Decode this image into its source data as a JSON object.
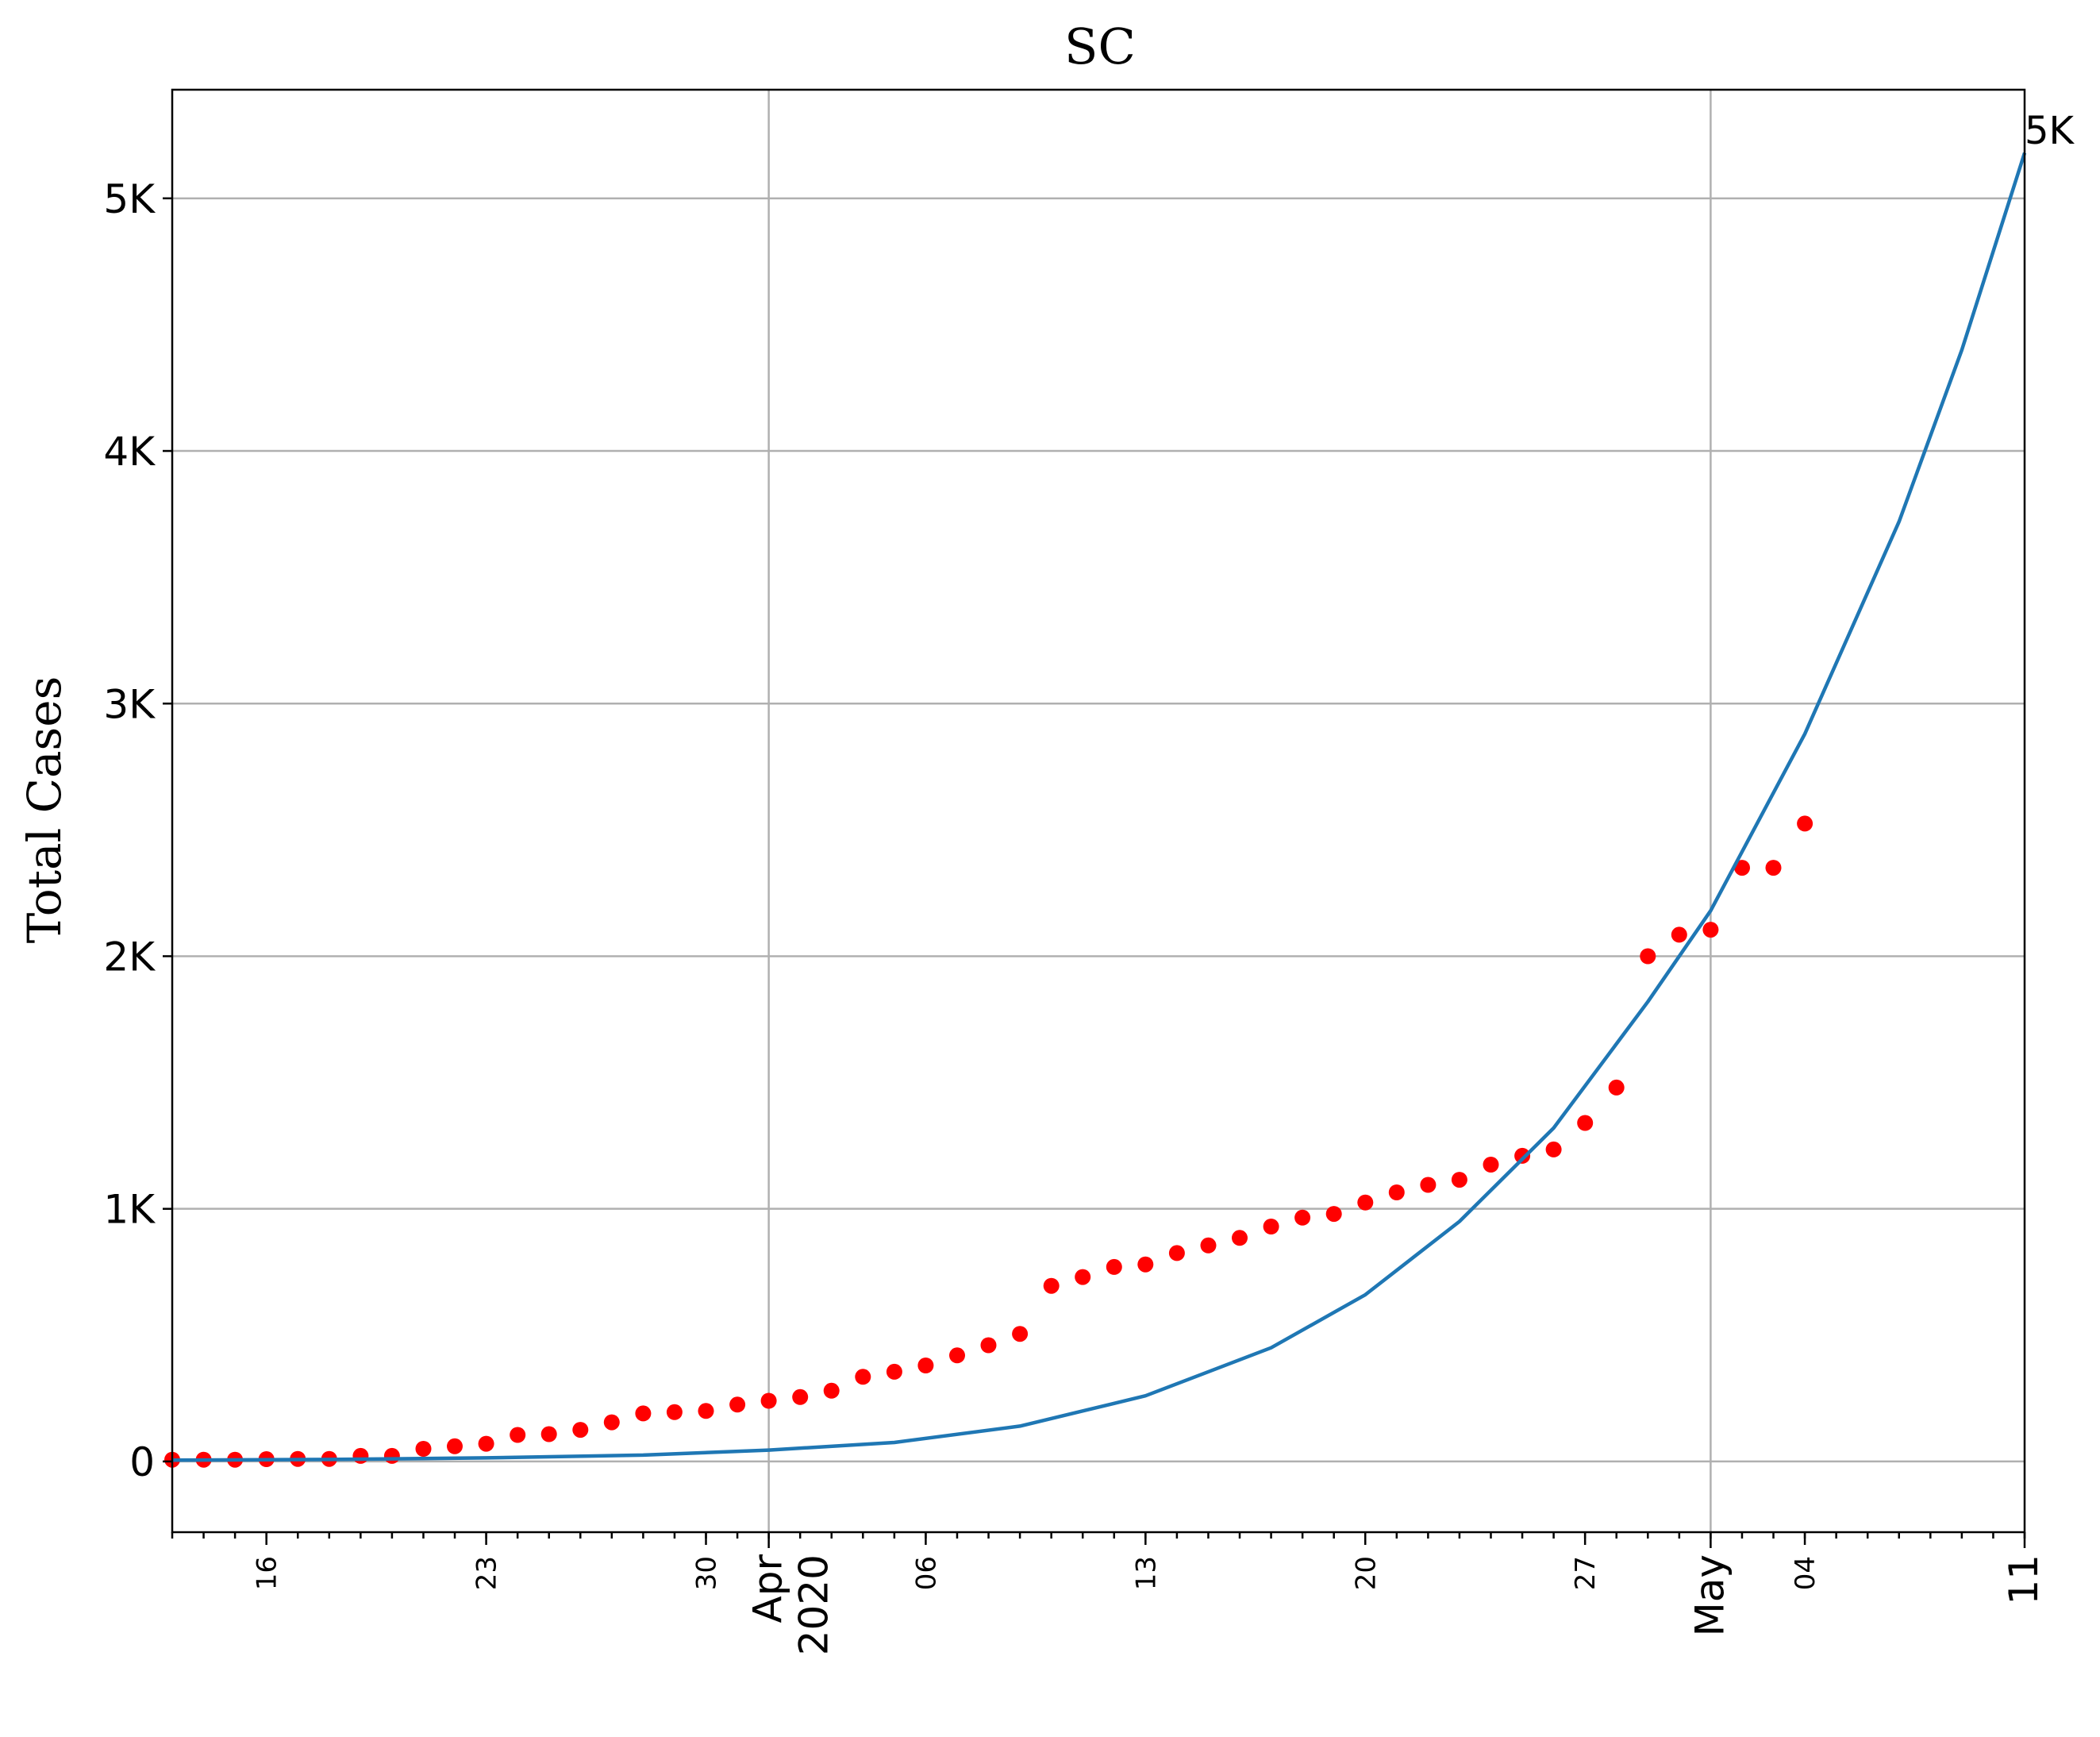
{
  "chart_data": {
    "type": "scatter",
    "title": "SC",
    "xlabel": "",
    "ylabel": "Total Cases",
    "x_range": [
      "2020-03-13",
      "2020-05-11"
    ],
    "ylim": [
      -280,
      5430
    ],
    "grid": true,
    "y_ticks": [
      {
        "value": 0,
        "label": "0"
      },
      {
        "value": 1000,
        "label": "1K"
      },
      {
        "value": 2000,
        "label": "2K"
      },
      {
        "value": 3000,
        "label": "3K"
      },
      {
        "value": 4000,
        "label": "4K"
      },
      {
        "value": 5000,
        "label": "5K"
      }
    ],
    "x_minor_labels": [
      {
        "date": "2020-03-16",
        "label": "16"
      },
      {
        "date": "2020-03-23",
        "label": "23"
      },
      {
        "date": "2020-03-30",
        "label": "30"
      },
      {
        "date": "2020-04-06",
        "label": "06"
      },
      {
        "date": "2020-04-13",
        "label": "13"
      },
      {
        "date": "2020-04-20",
        "label": "20"
      },
      {
        "date": "2020-04-27",
        "label": "27"
      },
      {
        "date": "2020-05-04",
        "label": "04"
      }
    ],
    "x_major_labels": [
      {
        "date": "2020-04-01",
        "lines": [
          "Apr",
          "2020"
        ]
      },
      {
        "date": "2020-05-01",
        "lines": [
          "May"
        ]
      },
      {
        "date": "2020-05-11",
        "lines": [
          "11"
        ]
      }
    ],
    "x_grid_dates": [
      "2020-04-01",
      "2020-05-01"
    ],
    "end_label": "5K",
    "series": [
      {
        "kind": "scatter",
        "color": "#ff0000",
        "points": [
          [
            "2020-03-13",
            7
          ],
          [
            "2020-03-14",
            7
          ],
          [
            "2020-03-15",
            7
          ],
          [
            "2020-03-16",
            9
          ],
          [
            "2020-03-17",
            10
          ],
          [
            "2020-03-18",
            10
          ],
          [
            "2020-03-19",
            22
          ],
          [
            "2020-03-20",
            22
          ],
          [
            "2020-03-21",
            50
          ],
          [
            "2020-03-22",
            60
          ],
          [
            "2020-03-23",
            70
          ],
          [
            "2020-03-24",
            105
          ],
          [
            "2020-03-25",
            108
          ],
          [
            "2020-03-26",
            125
          ],
          [
            "2020-03-27",
            155
          ],
          [
            "2020-03-28",
            190
          ],
          [
            "2020-03-29",
            195
          ],
          [
            "2020-03-30",
            200
          ],
          [
            "2020-03-31",
            225
          ],
          [
            "2020-04-01",
            240
          ],
          [
            "2020-04-02",
            255
          ],
          [
            "2020-04-03",
            280
          ],
          [
            "2020-04-04",
            335
          ],
          [
            "2020-04-05",
            355
          ],
          [
            "2020-04-06",
            380
          ],
          [
            "2020-04-07",
            420
          ],
          [
            "2020-04-08",
            460
          ],
          [
            "2020-04-09",
            505
          ],
          [
            "2020-04-10",
            695
          ],
          [
            "2020-04-11",
            730
          ],
          [
            "2020-04-12",
            770
          ],
          [
            "2020-04-13",
            780
          ],
          [
            "2020-04-14",
            825
          ],
          [
            "2020-04-15",
            855
          ],
          [
            "2020-04-16",
            885
          ],
          [
            "2020-04-17",
            930
          ],
          [
            "2020-04-18",
            965
          ],
          [
            "2020-04-19",
            980
          ],
          [
            "2020-04-20",
            1025
          ],
          [
            "2020-04-21",
            1065
          ],
          [
            "2020-04-22",
            1095
          ],
          [
            "2020-04-23",
            1115
          ],
          [
            "2020-04-24",
            1175
          ],
          [
            "2020-04-25",
            1210
          ],
          [
            "2020-04-26",
            1235
          ],
          [
            "2020-04-27",
            1340
          ],
          [
            "2020-04-28",
            1480
          ],
          [
            "2020-04-29",
            2000
          ],
          [
            "2020-04-30",
            2085
          ],
          [
            "2020-05-01",
            2105
          ],
          [
            "2020-05-02",
            2350
          ],
          [
            "2020-05-03",
            2350
          ],
          [
            "2020-05-04",
            2525
          ]
        ]
      },
      {
        "kind": "line",
        "color": "#1f77b4",
        "points": [
          [
            "2020-03-13",
            5
          ],
          [
            "2020-03-18",
            8
          ],
          [
            "2020-03-23",
            14
          ],
          [
            "2020-03-28",
            25
          ],
          [
            "2020-04-01",
            45
          ],
          [
            "2020-04-05",
            75
          ],
          [
            "2020-04-09",
            140
          ],
          [
            "2020-04-13",
            260
          ],
          [
            "2020-04-17",
            450
          ],
          [
            "2020-04-20",
            660
          ],
          [
            "2020-04-23",
            950
          ],
          [
            "2020-04-26",
            1320
          ],
          [
            "2020-04-29",
            1820
          ],
          [
            "2020-05-01",
            2180
          ],
          [
            "2020-05-04",
            2880
          ],
          [
            "2020-05-07",
            3720
          ],
          [
            "2020-05-09",
            4400
          ],
          [
            "2020-05-11",
            5180
          ]
        ]
      }
    ]
  }
}
